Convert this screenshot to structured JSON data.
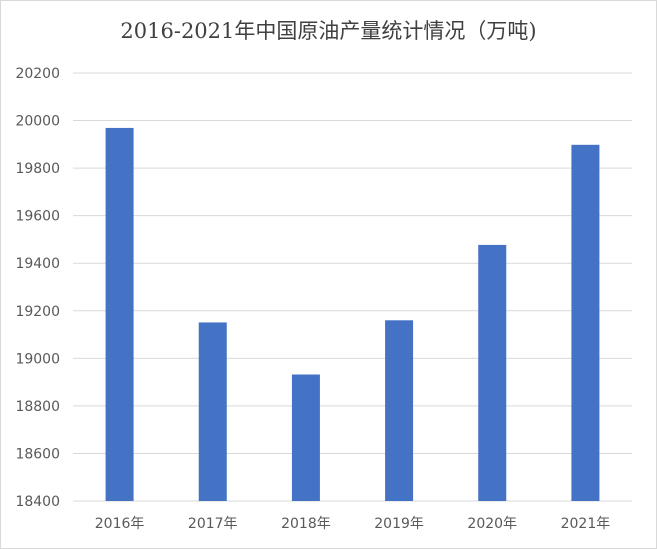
{
  "chart_data": {
    "type": "bar",
    "title": "2016-2021年中国原油产量统计情况（万吨)",
    "xlabel": "",
    "ylabel": "",
    "categories": [
      "2016年",
      "2017年",
      "2018年",
      "2019年",
      "2020年",
      "2021年"
    ],
    "values": [
      19969,
      19151,
      18932,
      19160,
      19477,
      19898
    ],
    "ylim": [
      18400,
      20200
    ],
    "yticks": [
      18400,
      18600,
      18800,
      19000,
      19200,
      19400,
      19600,
      19800,
      20000,
      20200
    ],
    "grid": true,
    "legend": "none",
    "bar_color": "#4472c4"
  }
}
